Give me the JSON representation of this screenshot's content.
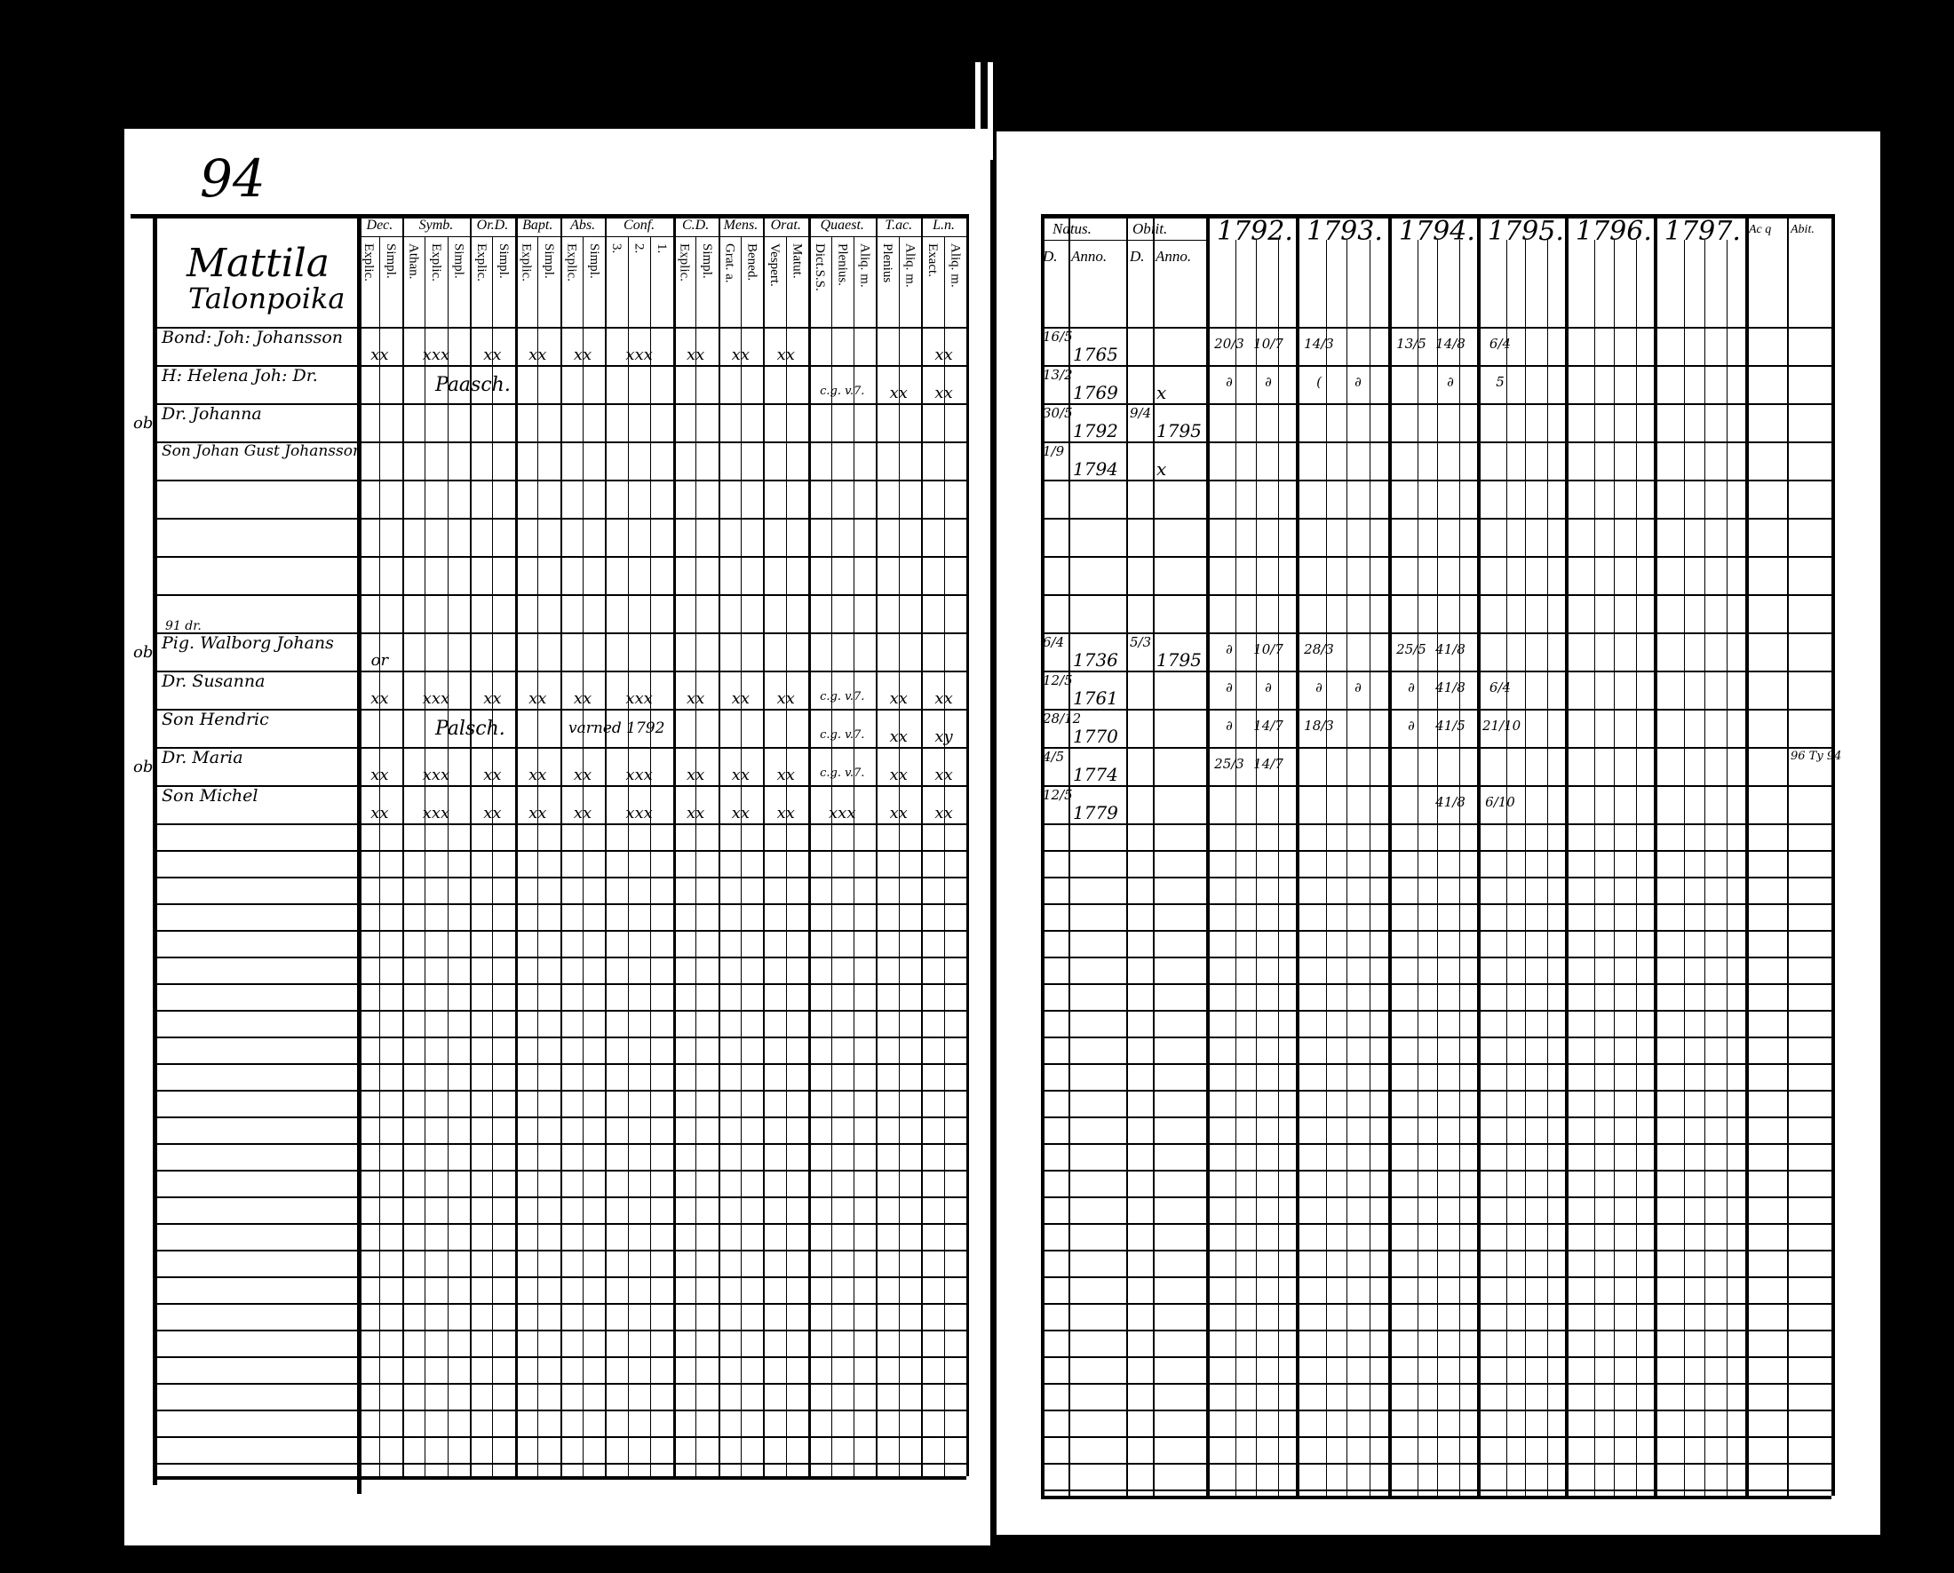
{
  "left_page": {
    "page_number": "94",
    "village": "Mattila",
    "village_sub": "Talonpoika",
    "column_groups": [
      {
        "label": "Dec.",
        "sub": [
          "Explic.",
          "Simpl."
        ]
      },
      {
        "label": "Symb.",
        "sub": [
          "Athan.",
          "Explic.",
          "Simpl."
        ]
      },
      {
        "label": "Or.D.",
        "sub": [
          "Explic.",
          "Simpl."
        ]
      },
      {
        "label": "Bapt.",
        "sub": [
          "Explic.",
          "Simpl."
        ]
      },
      {
        "label": "Abs.",
        "sub": [
          "Explic.",
          "Simpl."
        ]
      },
      {
        "label": "Conf.",
        "sub": [
          "3.",
          "2.",
          "1."
        ]
      },
      {
        "label": "C.D.",
        "sub": [
          "Explic.",
          "Simpl."
        ]
      },
      {
        "label": "Mens.",
        "sub": [
          "Grat. a.",
          "Bened."
        ]
      },
      {
        "label": "Orat.",
        "sub": [
          "Vespert.",
          "Matut."
        ]
      },
      {
        "label": "Quaest.",
        "sub": [
          "Dict.S.S.",
          "Plenius.",
          "Aliq. m."
        ]
      },
      {
        "label": "T.ac.",
        "sub": [
          "Plenius",
          "Aliq. m."
        ]
      },
      {
        "label": "L.n.",
        "sub": [
          "Exact.",
          "Aliq. m."
        ]
      }
    ],
    "rows": [
      {
        "row": 0,
        "margin": "",
        "name": "Bond: Joh: Johansson",
        "marks": [
          "xx",
          "xxx",
          "xx",
          "xx",
          "xx",
          "xxx",
          "xx",
          "xx",
          "xx",
          "",
          "",
          "xx"
        ]
      },
      {
        "row": 1,
        "margin": "",
        "name": "H: Helena Joh: Dr.",
        "note": "Paasch.",
        "marks": [
          "",
          "",
          "",
          "",
          "",
          "",
          "",
          "",
          "",
          "c.g. v.7.",
          "xx",
          "xx"
        ]
      },
      {
        "row": 2,
        "margin": "ob",
        "name": "Dr. Johanna"
      },
      {
        "row": 3,
        "margin": "",
        "name": "Son Johan Gust Johansson"
      },
      {
        "row": 8,
        "margin": "ob",
        "name": "Pig. Walborg Johans",
        "above": "91 dr.",
        "marks": [
          "or"
        ]
      },
      {
        "row": 9,
        "margin": "",
        "name": "Dr. Susanna",
        "marks": [
          "xx",
          "xxx",
          "xx",
          "xx",
          "xx",
          "xxx",
          "xx",
          "xx",
          "xx",
          "c.g. v.7.",
          "xx",
          "xx"
        ]
      },
      {
        "row": 10,
        "margin": "",
        "name": "Son Hendric",
        "note": "Palsch.",
        "note2": "varned 1792",
        "marks": [
          "",
          "",
          "",
          "",
          "",
          "",
          "",
          "",
          "",
          "c.g. v.7.",
          "xx",
          "xy"
        ]
      },
      {
        "row": 11,
        "margin": "ob",
        "name": "Dr. Maria",
        "marks": [
          "xx",
          "xxx",
          "xx",
          "xx",
          "xx",
          "xxx",
          "xx",
          "xx",
          "xx",
          "c.g. v.7.",
          "xx",
          "xx"
        ]
      },
      {
        "row": 12,
        "margin": "",
        "name": "Son Michel",
        "marks": [
          "xx",
          "xxx",
          "xx",
          "xx",
          "xx",
          "xxx",
          "xx",
          "xx",
          "xx",
          "xxx",
          "xx",
          "xx"
        ]
      }
    ]
  },
  "right_page": {
    "headers": {
      "natus": "Natus.",
      "obiit": "Obiit.",
      "d": "D.",
      "anno": "Anno.",
      "years": [
        "1792.",
        "1793.",
        "1794.",
        "1795.",
        "1796.",
        "1797."
      ],
      "extra": [
        "Ac q",
        "Abit."
      ]
    },
    "rows": [
      {
        "row": 0,
        "natus_d": "16/5",
        "natus_anno": "1765",
        "obiit_d": "",
        "obiit_anno": "",
        "entries": [
          "20/3",
          "10/7",
          "14/3",
          "",
          "13/5",
          "14/8",
          "6/4"
        ]
      },
      {
        "row": 1,
        "natus_d": "13/2",
        "natus_anno": "1769",
        "obiit_d": "",
        "obiit_anno": "x",
        "entries": [
          "∂",
          "∂",
          "(",
          "∂",
          "",
          "∂",
          "5"
        ]
      },
      {
        "row": 2,
        "natus_d": "30/5",
        "natus_anno": "1792",
        "obiit_d": "9/4",
        "obiit_anno": "1795"
      },
      {
        "row": 3,
        "natus_d": "1/9",
        "natus_anno": "1794",
        "obiit_d": "",
        "obiit_anno": "x"
      },
      {
        "row": 8,
        "natus_d": "6/4",
        "natus_anno": "1736",
        "obiit_d": "5/3",
        "obiit_anno": "1795",
        "entries": [
          "∂",
          "10/7",
          "28/3",
          "",
          "25/5",
          "41/8",
          ""
        ]
      },
      {
        "row": 9,
        "natus_d": "12/5",
        "natus_anno": "1761",
        "obiit_d": "",
        "obiit_anno": "",
        "entries": [
          "∂",
          "∂",
          "∂",
          "∂",
          "∂",
          "41/8",
          "6/4"
        ]
      },
      {
        "row": 10,
        "natus_d": "28/12",
        "natus_anno": "1770",
        "obiit_d": "",
        "obiit_anno": "",
        "entries": [
          "∂",
          "14/7",
          "18/3",
          "",
          "∂",
          "41/5",
          "21/10"
        ]
      },
      {
        "row": 11,
        "natus_d": "4/5",
        "natus_anno": "1774",
        "obiit_d": "",
        "obiit_anno": "",
        "entries": [
          "25/3",
          "14/7",
          "",
          "",
          "",
          "",
          ""
        ],
        "extra_note": "96 Ty 94"
      },
      {
        "row": 12,
        "natus_d": "12/5",
        "natus_anno": "1779",
        "obiit_d": "",
        "obiit_anno": "",
        "entries": [
          "",
          "",
          "",
          "",
          "",
          "41/8",
          "6/10"
        ]
      }
    ]
  }
}
